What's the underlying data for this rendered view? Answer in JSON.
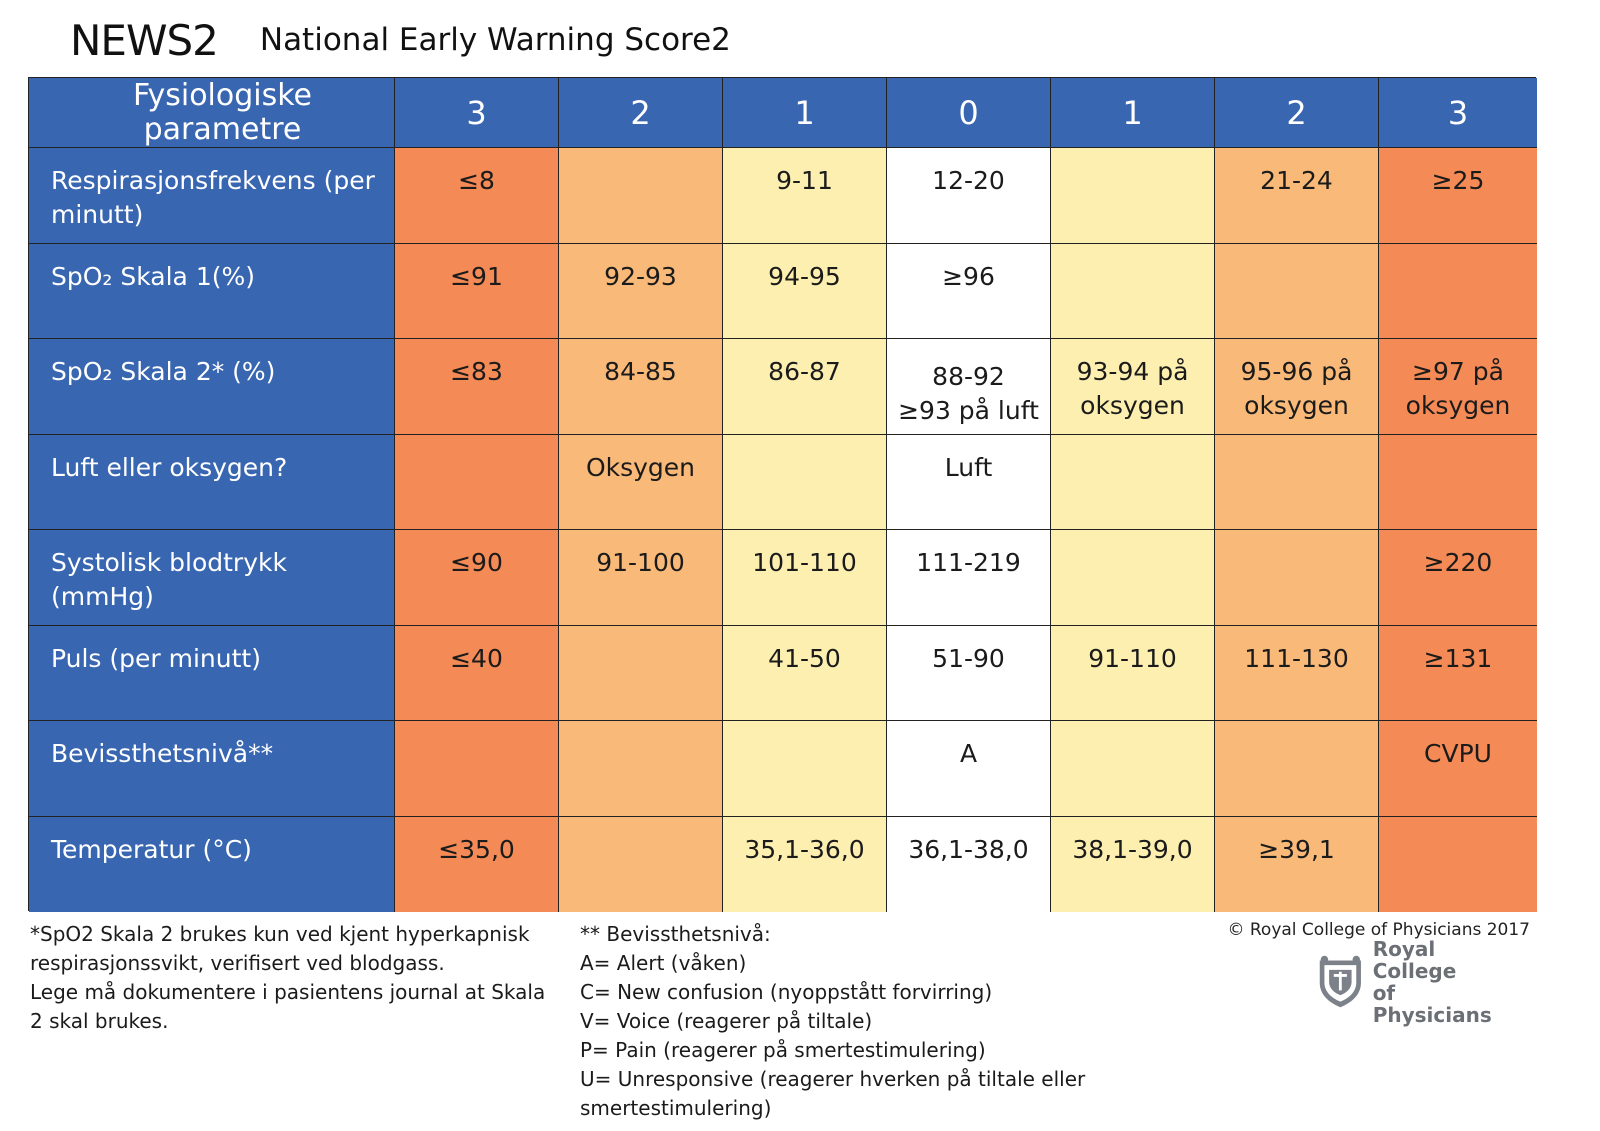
{
  "header": {
    "short_title": "NEWS2",
    "long_title": "National Early Warning Score2"
  },
  "table": {
    "column_headers": [
      "Fysiologiske parametre",
      "3",
      "2",
      "1",
      "0",
      "1",
      "2",
      "3"
    ],
    "rows": [
      {
        "param": "Respirasjonsfrekvens (per minutt)",
        "values": [
          "≤8",
          "",
          "9-11",
          "12-20",
          "",
          "21-24",
          "≥25"
        ]
      },
      {
        "param": "SpO₂ Skala 1(%)",
        "values": [
          "≤91",
          "92-93",
          "94-95",
          "≥96",
          "",
          "",
          ""
        ]
      },
      {
        "param": "SpO₂ Skala 2* (%)",
        "values": [
          "≤83",
          "84-85",
          "86-87",
          "88-92\n≥93 på luft",
          "93-94 på oksygen",
          "95-96 på oksygen",
          "≥97 på oksygen"
        ]
      },
      {
        "param": "Luft eller oksygen?",
        "values": [
          "",
          "Oksygen",
          "",
          "Luft",
          "",
          "",
          ""
        ]
      },
      {
        "param": "Systolisk blodtrykk (mmHg)",
        "values": [
          "≤90",
          "91-100",
          "101-110",
          "111-219",
          "",
          "",
          "≥220"
        ]
      },
      {
        "param": "Puls (per minutt)",
        "values": [
          "≤40",
          "",
          "41-50",
          "51-90",
          "91-110",
          "111-130",
          "≥131"
        ]
      },
      {
        "param": "Bevissthetsnivå**",
        "values": [
          "",
          "",
          "",
          "A",
          "",
          "",
          "CVPU"
        ]
      },
      {
        "param": "Temperatur (°C)",
        "values": [
          "≤35,0",
          "",
          "35,1-36,0",
          "36,1-38,0",
          "38,1-39,0",
          "≥39,1",
          ""
        ]
      }
    ]
  },
  "footnotes": {
    "left": [
      "*SpO2 Skala 2 brukes kun ved kjent hyperkapnisk",
      "respirasjonssvikt, verifisert ved blodgass.",
      "Lege må dokumentere i pasientens journal at Skala",
      "2 skal brukes."
    ],
    "middle": [
      "** Bevissthetsnivå:",
      "A= Alert (våken)",
      "C= New confusion (nyoppstått forvirring)",
      "V= Voice (reagerer på tiltale)",
      "P= Pain (reagerer på smertestimulering)",
      "U= Unresponsive (reagerer hverken på tiltale eller smertestimulering)"
    ]
  },
  "copyright": "© Royal College of Physicians 2017",
  "logo": {
    "line1": "Royal College",
    "line2": "of Physicians",
    "icon": "crest-icon"
  },
  "colors": {
    "header_blue": "#3866b1",
    "score3": "#f48a55",
    "score2": "#f9b979",
    "score1": "#fcefb0",
    "score0": "#ffffff"
  }
}
